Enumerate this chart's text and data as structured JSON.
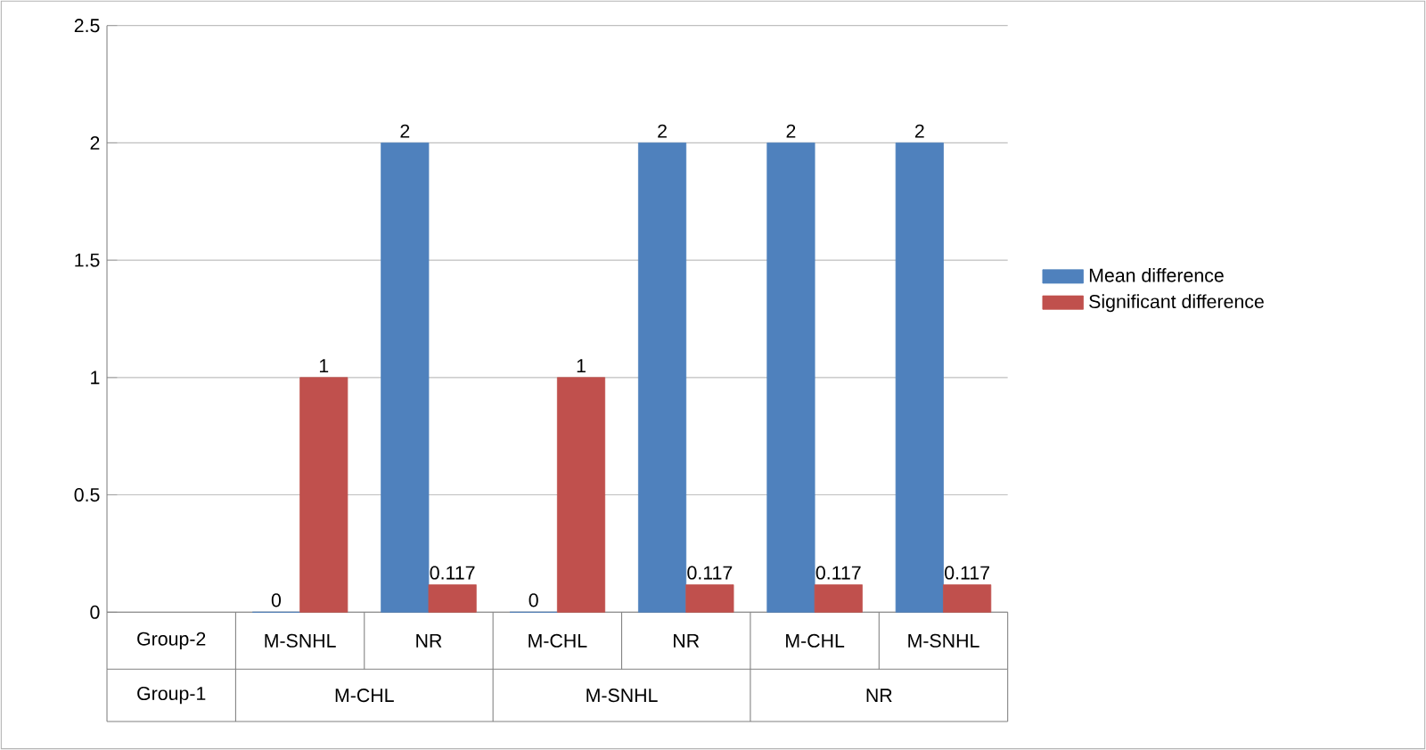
{
  "chart_data": {
    "type": "bar",
    "categories": [
      "M-SNHL",
      "NR",
      "M-CHL",
      "NR",
      "M-CHL",
      "M-SNHL"
    ],
    "series": [
      {
        "name": "Mean difference",
        "color": "#4f81bd",
        "values": [
          0,
          2,
          0,
          2,
          2,
          2
        ]
      },
      {
        "name": "Significant difference",
        "color": "#c0504d",
        "values": [
          1,
          0.117,
          1,
          0.117,
          0.117,
          0.117
        ]
      }
    ],
    "annotations": [
      "Group-2",
      "Group-1",
      "M-CHL",
      "M-SNHL",
      "NR"
    ],
    "ylim": [
      0,
      2.5
    ],
    "yticks": [
      0,
      0.5,
      1,
      1.5,
      2,
      2.5
    ],
    "grid": "y",
    "legend": "right",
    "data_labels": true
  }
}
